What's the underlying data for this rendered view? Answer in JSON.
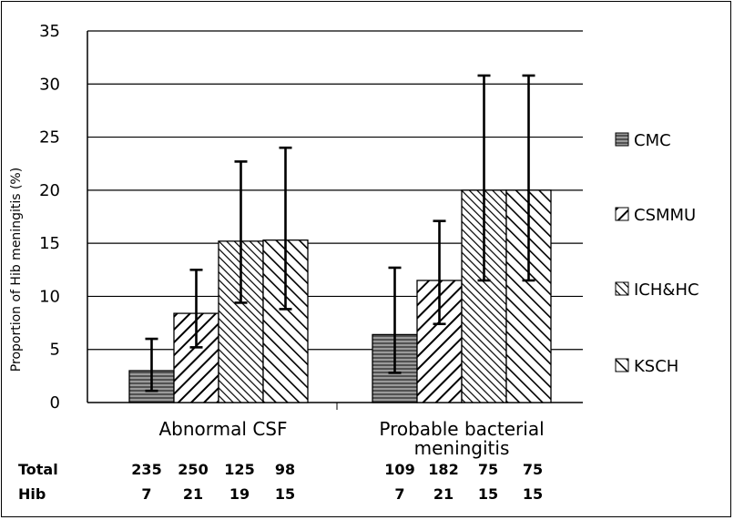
{
  "chart_data": {
    "type": "bar",
    "ylabel": "Proportion of Hib meningitis (%)",
    "ylim": [
      0,
      35
    ],
    "yticks": [
      0,
      5,
      10,
      15,
      20,
      25,
      30,
      35
    ],
    "grid": true,
    "legend_position": "right",
    "categories": [
      {
        "lines": [
          "Abnormal CSF"
        ]
      },
      {
        "lines": [
          "Probable bacterial",
          "meningitis"
        ]
      }
    ],
    "series": [
      {
        "name": "CMC",
        "values": [
          3.0,
          6.4
        ],
        "err_low": [
          1.1,
          2.8
        ],
        "err_high": [
          6.0,
          12.7
        ],
        "pattern": "horizontal",
        "color": "#7a7a7a"
      },
      {
        "name": "CSMMU",
        "values": [
          8.4,
          11.5
        ],
        "err_low": [
          5.2,
          7.4
        ],
        "err_high": [
          12.5,
          17.1
        ],
        "pattern": "diag-wide",
        "color": "#ffffff"
      },
      {
        "name": "ICH&HC",
        "values": [
          15.2,
          20.0
        ],
        "err_low": [
          9.4,
          11.5
        ],
        "err_high": [
          22.7,
          30.8
        ],
        "pattern": "diag-dense",
        "color": "#ffffff"
      },
      {
        "name": "KSCH",
        "values": [
          15.3,
          20.0
        ],
        "err_low": [
          8.8,
          11.5
        ],
        "err_high": [
          24.0,
          30.8
        ],
        "pattern": "diag-back",
        "color": "#ffffff"
      }
    ],
    "table": {
      "rows": [
        {
          "label": "Total",
          "values": [
            "235",
            "250",
            "125",
            "98",
            "109",
            "182",
            "75",
            "75"
          ]
        },
        {
          "label": "Hib",
          "values": [
            "7",
            "21",
            "19",
            "15",
            "7",
            "21",
            "15",
            "15"
          ]
        }
      ]
    }
  }
}
